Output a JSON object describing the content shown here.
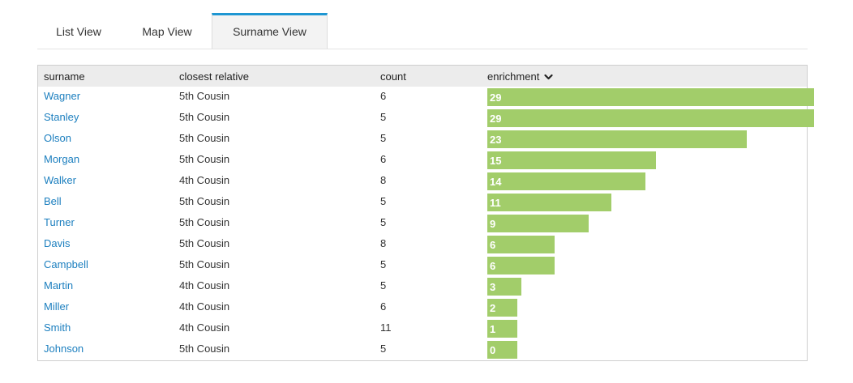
{
  "tabs": [
    {
      "label": "List View",
      "active": false
    },
    {
      "label": "Map View",
      "active": false
    },
    {
      "label": "Surname View",
      "active": true
    }
  ],
  "table": {
    "headers": {
      "surname": "surname",
      "relative": "closest relative",
      "count": "count",
      "enrichment": "enrichment"
    },
    "sort_icon": "chevron-down-icon",
    "rows": [
      {
        "surname": "Wagner",
        "relative": "5th Cousin",
        "count": "6",
        "enrichment": 29
      },
      {
        "surname": "Stanley",
        "relative": "5th Cousin",
        "count": "5",
        "enrichment": 29
      },
      {
        "surname": "Olson",
        "relative": "5th Cousin",
        "count": "5",
        "enrichment": 23
      },
      {
        "surname": "Morgan",
        "relative": "5th Cousin",
        "count": "6",
        "enrichment": 15
      },
      {
        "surname": "Walker",
        "relative": "4th Cousin",
        "count": "8",
        "enrichment": 14
      },
      {
        "surname": "Bell",
        "relative": "5th Cousin",
        "count": "5",
        "enrichment": 11
      },
      {
        "surname": "Turner",
        "relative": "5th Cousin",
        "count": "5",
        "enrichment": 9
      },
      {
        "surname": "Davis",
        "relative": "5th Cousin",
        "count": "8",
        "enrichment": 6
      },
      {
        "surname": "Campbell",
        "relative": "5th Cousin",
        "count": "5",
        "enrichment": 6
      },
      {
        "surname": "Martin",
        "relative": "4th Cousin",
        "count": "5",
        "enrichment": 3
      },
      {
        "surname": "Miller",
        "relative": "4th Cousin",
        "count": "6",
        "enrichment": 2
      },
      {
        "surname": "Smith",
        "relative": "4th Cousin",
        "count": "11",
        "enrichment": 1
      },
      {
        "surname": "Johnson",
        "relative": "5th Cousin",
        "count": "5",
        "enrichment": 0
      }
    ]
  },
  "colors": {
    "bar": "#a2cd6a",
    "link": "#1c7fbf",
    "active_tab_accent": "#1e96d2"
  }
}
